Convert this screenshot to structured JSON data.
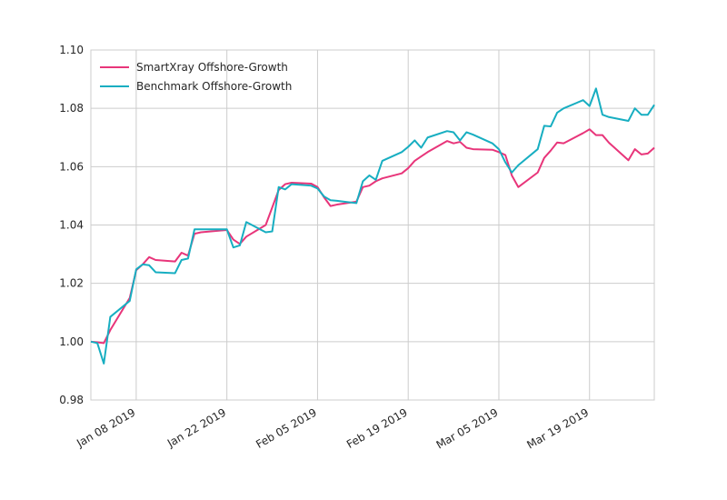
{
  "chart_data": {
    "type": "line",
    "title": "",
    "xlabel": "",
    "ylabel": "",
    "xlim": [
      "2019-01-01",
      "2019-03-29"
    ],
    "ylim": [
      0.98,
      1.1
    ],
    "yticks": [
      0.98,
      1.0,
      1.02,
      1.04,
      1.06,
      1.08,
      1.1
    ],
    "ytick_labels": [
      "0.98",
      "1.00",
      "1.02",
      "1.04",
      "1.06",
      "1.08",
      "1.10"
    ],
    "xticks": [
      "2019-01-08",
      "2019-01-22",
      "2019-02-05",
      "2019-02-19",
      "2019-03-05",
      "2019-03-19"
    ],
    "xtick_labels": [
      "Jan 08 2019",
      "Jan 22 2019",
      "Feb 05 2019",
      "Feb 19 2019",
      "Mar 05 2019",
      "Mar 19 2019"
    ],
    "grid": true,
    "legend_position": "top-left",
    "series": [
      {
        "name": "SmartXray Offshore-Growth",
        "color": "#e8357a",
        "x": [
          "2019-01-01",
          "2019-01-02",
          "2019-01-03",
          "2019-01-04",
          "2019-01-07",
          "2019-01-08",
          "2019-01-09",
          "2019-01-10",
          "2019-01-11",
          "2019-01-14",
          "2019-01-15",
          "2019-01-16",
          "2019-01-17",
          "2019-01-18",
          "2019-01-22",
          "2019-01-23",
          "2019-01-24",
          "2019-01-25",
          "2019-01-28",
          "2019-01-29",
          "2019-01-30",
          "2019-01-31",
          "2019-02-01",
          "2019-02-04",
          "2019-02-05",
          "2019-02-06",
          "2019-02-07",
          "2019-02-08",
          "2019-02-11",
          "2019-02-12",
          "2019-02-13",
          "2019-02-14",
          "2019-02-15",
          "2019-02-18",
          "2019-02-19",
          "2019-02-20",
          "2019-02-21",
          "2019-02-22",
          "2019-02-25",
          "2019-02-26",
          "2019-02-27",
          "2019-02-28",
          "2019-03-01",
          "2019-03-04",
          "2019-03-05",
          "2019-03-06",
          "2019-03-07",
          "2019-03-08",
          "2019-03-11",
          "2019-03-12",
          "2019-03-13",
          "2019-03-14",
          "2019-03-15",
          "2019-03-18",
          "2019-03-19",
          "2019-03-20",
          "2019-03-21",
          "2019-03-22",
          "2019-03-25",
          "2019-03-26",
          "2019-03-27",
          "2019-03-28",
          "2019-03-29"
        ],
        "values": [
          1.0,
          0.9998,
          0.9995,
          1.004,
          1.015,
          1.0245,
          1.0265,
          1.029,
          1.028,
          1.0275,
          1.0305,
          1.0295,
          1.037,
          1.0375,
          1.0383,
          1.035,
          1.0335,
          1.036,
          1.04,
          1.046,
          1.052,
          1.054,
          1.0545,
          1.0542,
          1.053,
          1.0495,
          1.0465,
          1.047,
          1.048,
          1.053,
          1.0535,
          1.055,
          1.056,
          1.0577,
          1.0595,
          1.062,
          1.0635,
          1.065,
          1.0688,
          1.068,
          1.0685,
          1.0665,
          1.066,
          1.0658,
          1.065,
          1.064,
          1.057,
          1.053,
          1.058,
          1.063,
          1.0655,
          1.0683,
          1.068,
          1.0715,
          1.0728,
          1.0708,
          1.0708,
          1.0682,
          1.0622,
          1.066,
          1.0642,
          1.0645,
          1.0665
        ]
      },
      {
        "name": "Benchmark Offshore-Growth",
        "color": "#17aec1",
        "x": [
          "2019-01-01",
          "2019-01-02",
          "2019-01-03",
          "2019-01-04",
          "2019-01-07",
          "2019-01-08",
          "2019-01-09",
          "2019-01-10",
          "2019-01-11",
          "2019-01-14",
          "2019-01-15",
          "2019-01-16",
          "2019-01-17",
          "2019-01-18",
          "2019-01-22",
          "2019-01-23",
          "2019-01-24",
          "2019-01-25",
          "2019-01-28",
          "2019-01-29",
          "2019-01-30",
          "2019-01-31",
          "2019-02-01",
          "2019-02-04",
          "2019-02-05",
          "2019-02-06",
          "2019-02-07",
          "2019-02-08",
          "2019-02-11",
          "2019-02-12",
          "2019-02-13",
          "2019-02-14",
          "2019-02-15",
          "2019-02-18",
          "2019-02-19",
          "2019-02-20",
          "2019-02-21",
          "2019-02-22",
          "2019-02-25",
          "2019-02-26",
          "2019-02-27",
          "2019-02-28",
          "2019-03-01",
          "2019-03-04",
          "2019-03-05",
          "2019-03-06",
          "2019-03-07",
          "2019-03-08",
          "2019-03-11",
          "2019-03-12",
          "2019-03-13",
          "2019-03-14",
          "2019-03-15",
          "2019-03-18",
          "2019-03-19",
          "2019-03-20",
          "2019-03-21",
          "2019-03-22",
          "2019-03-25",
          "2019-03-26",
          "2019-03-27",
          "2019-03-28",
          "2019-03-29"
        ],
        "values": [
          1.0,
          0.9995,
          0.9925,
          1.0085,
          1.014,
          1.0248,
          1.0265,
          1.0262,
          1.0238,
          1.0235,
          1.028,
          1.0285,
          1.0385,
          1.0385,
          1.0385,
          1.0323,
          1.033,
          1.041,
          1.0375,
          1.0378,
          1.053,
          1.0522,
          1.054,
          1.0535,
          1.0525,
          1.0498,
          1.0485,
          1.0483,
          1.0475,
          1.055,
          1.057,
          1.0555,
          1.062,
          1.065,
          1.0668,
          1.069,
          1.0665,
          1.07,
          1.0722,
          1.0718,
          1.069,
          1.0718,
          1.071,
          1.068,
          1.066,
          1.0615,
          1.058,
          1.0605,
          1.066,
          1.074,
          1.0738,
          1.0785,
          1.08,
          1.0828,
          1.0808,
          1.0868,
          1.0778,
          1.077,
          1.0757,
          1.08,
          1.0778,
          1.0778,
          1.0812
        ]
      }
    ]
  }
}
